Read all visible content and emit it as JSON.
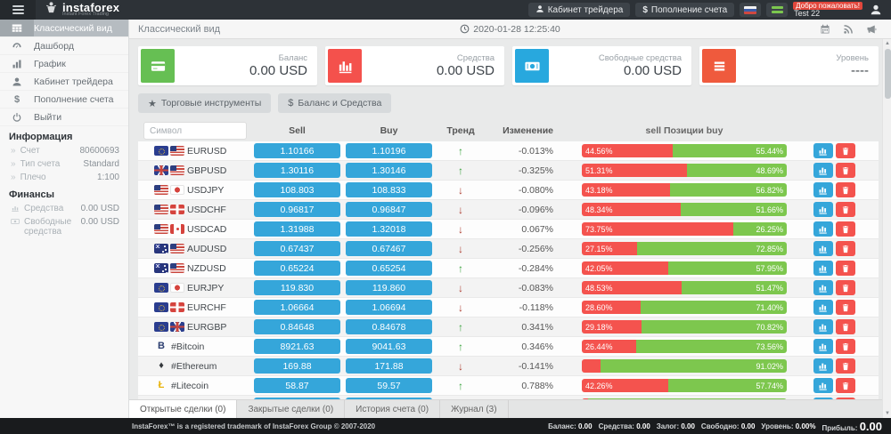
{
  "topbar": {
    "logo_text": "instaforex",
    "tagline": "Instant Forex Trading",
    "cabinet_label": "Кабинет трейдера",
    "deposit_label": "Пополнение счета",
    "deposit_icon": "$",
    "welcome_label": "Добро пожаловать!",
    "username": "Test 22",
    "icons": [
      "menu-icon",
      "instaforex-logo",
      "user-icon",
      "dollar-icon",
      "russian-flag-icon",
      "green-flag-icon",
      "avatar-icon"
    ]
  },
  "sidebar": {
    "items": [
      {
        "name": "classic-view",
        "label": "Классический вид",
        "icon": "table",
        "active": true
      },
      {
        "name": "dashboard",
        "label": "Дашборд",
        "icon": "dashboard",
        "active": false
      },
      {
        "name": "chart",
        "label": "График",
        "icon": "chart",
        "active": false
      },
      {
        "name": "trader-cabinet",
        "label": "Кабинет трейдера",
        "icon": "user",
        "active": false
      },
      {
        "name": "deposit",
        "label": "Пополнение счета",
        "icon": "dollar",
        "active": false
      },
      {
        "name": "logout",
        "label": "Выйти",
        "icon": "power",
        "active": false
      }
    ],
    "info_title": "Информация",
    "info_rows": [
      {
        "label": "Счет",
        "value": "80600693"
      },
      {
        "label": "Тип счета",
        "value": "Standard"
      },
      {
        "label": "Плечо",
        "value": "1:100"
      }
    ],
    "finance_title": "Финансы",
    "finance_rows": [
      {
        "label": "Средства",
        "value": "0.00 USD",
        "icon": "equity"
      },
      {
        "label": "Свободные средства",
        "value": "0.00 USD",
        "icon": "freefunds"
      }
    ]
  },
  "main_header": {
    "title": "Классический вид",
    "datetime": "2020-01-28 12:25:40",
    "icons": [
      "clock-icon",
      "calendar-icon",
      "rss-icon",
      "megaphone-icon"
    ]
  },
  "cards": [
    {
      "label": "Баланс",
      "value": "0.00 USD",
      "icon": "credit-card-icon",
      "color": "#66bf53"
    },
    {
      "label": "Средства",
      "value": "0.00 USD",
      "icon": "bar-chart-icon",
      "color": "#f4514c"
    },
    {
      "label": "Свободные средства",
      "value": "0.00 USD",
      "icon": "banknote-icon",
      "color": "#28a8de"
    },
    {
      "label": "Уровень",
      "value": "----",
      "icon": "menu-bars-icon",
      "color": "#ef5a3d"
    }
  ],
  "toolbar": {
    "instruments_label": "Торговые инструменты",
    "instruments_icon": "★",
    "balance_label": "Баланс и Средства",
    "balance_icon": "$"
  },
  "table": {
    "symbol_placeholder": "Символ",
    "headers": {
      "sell": "Sell",
      "buy": "Buy",
      "trend": "Тренд",
      "change": "Изменение",
      "positions": "sell Позиции buy"
    },
    "rows": [
      {
        "symbol": "EURUSD",
        "icons": [
          "eu",
          "us"
        ],
        "sell": "1.10166",
        "buy": "1.10196",
        "trend": "up",
        "change": "-0.013%",
        "sell_pct": 44.56,
        "sell_label": "44.56%",
        "buy_label": "55.44%"
      },
      {
        "symbol": "GBPUSD",
        "icons": [
          "gb",
          "us"
        ],
        "sell": "1.30116",
        "buy": "1.30146",
        "trend": "up",
        "change": "-0.325%",
        "sell_pct": 51.31,
        "sell_label": "51.31%",
        "buy_label": "48.69%"
      },
      {
        "symbol": "USDJPY",
        "icons": [
          "us",
          "jp"
        ],
        "sell": "108.803",
        "buy": "108.833",
        "trend": "down",
        "change": "-0.080%",
        "sell_pct": 43.18,
        "sell_label": "43.18%",
        "buy_label": "56.82%"
      },
      {
        "symbol": "USDCHF",
        "icons": [
          "us",
          "ch"
        ],
        "sell": "0.96817",
        "buy": "0.96847",
        "trend": "down",
        "change": "-0.096%",
        "sell_pct": 48.34,
        "sell_label": "48.34%",
        "buy_label": "51.66%"
      },
      {
        "symbol": "USDCAD",
        "icons": [
          "us",
          "ca"
        ],
        "sell": "1.31988",
        "buy": "1.32018",
        "trend": "down",
        "change": "0.067%",
        "sell_pct": 73.75,
        "sell_label": "73.75%",
        "buy_label": "26.25%"
      },
      {
        "symbol": "AUDUSD",
        "icons": [
          "au",
          "us"
        ],
        "sell": "0.67437",
        "buy": "0.67467",
        "trend": "down",
        "change": "-0.256%",
        "sell_pct": 27.15,
        "sell_label": "27.15%",
        "buy_label": "72.85%"
      },
      {
        "symbol": "NZDUSD",
        "icons": [
          "nz",
          "us"
        ],
        "sell": "0.65224",
        "buy": "0.65254",
        "trend": "up",
        "change": "-0.284%",
        "sell_pct": 42.05,
        "sell_label": "42.05%",
        "buy_label": "57.95%"
      },
      {
        "symbol": "EURJPY",
        "icons": [
          "eu",
          "jp"
        ],
        "sell": "119.830",
        "buy": "119.860",
        "trend": "down",
        "change": "-0.083%",
        "sell_pct": 48.53,
        "sell_label": "48.53%",
        "buy_label": "51.47%"
      },
      {
        "symbol": "EURCHF",
        "icons": [
          "eu",
          "ch"
        ],
        "sell": "1.06664",
        "buy": "1.06694",
        "trend": "down",
        "change": "-0.118%",
        "sell_pct": 28.6,
        "sell_label": "28.60%",
        "buy_label": "71.40%"
      },
      {
        "symbol": "EURGBP",
        "icons": [
          "eu",
          "gb"
        ],
        "sell": "0.84648",
        "buy": "0.84678",
        "trend": "up",
        "change": "0.341%",
        "sell_pct": 29.18,
        "sell_label": "29.18%",
        "buy_label": "70.82%"
      },
      {
        "symbol": "#Bitcoin",
        "icons": [
          "btc"
        ],
        "sell": "8921.63",
        "buy": "9041.63",
        "trend": "up",
        "change": "0.346%",
        "sell_pct": 26.44,
        "sell_label": "26.44%",
        "buy_label": "73.56%"
      },
      {
        "symbol": "#Ethereum",
        "icons": [
          "eth"
        ],
        "sell": "169.88",
        "buy": "171.88",
        "trend": "down",
        "change": "-0.141%",
        "sell_pct": 8.98,
        "sell_label": "",
        "buy_label": "91.02%"
      },
      {
        "symbol": "#Litecoin",
        "icons": [
          "ltc"
        ],
        "sell": "58.87",
        "buy": "59.57",
        "trend": "up",
        "change": "0.788%",
        "sell_pct": 42.26,
        "sell_label": "42.26%",
        "buy_label": "57.74%"
      },
      {
        "symbol": "",
        "icons": [],
        "sell": "",
        "buy": "",
        "trend": "",
        "change": "",
        "sell_pct": 3,
        "sell_label": "",
        "buy_label": ""
      }
    ]
  },
  "bottom_tabs": [
    {
      "label": "Открытые сделки (0)",
      "active": true
    },
    {
      "label": "Закрытые сделки (0)",
      "active": false
    },
    {
      "label": "История счета (0)",
      "active": false
    },
    {
      "label": "Журнал (3)",
      "active": false
    }
  ],
  "footer": {
    "trademark": "InstaForex™ is a registered trademark of InstaForex Group © 2007-2020",
    "stats": [
      {
        "label": "Баланс:",
        "value": "0.00",
        "big": false
      },
      {
        "label": "Средства:",
        "value": "0.00",
        "big": false
      },
      {
        "label": "Залог:",
        "value": "0.00",
        "big": false
      },
      {
        "label": "Свободно:",
        "value": "0.00",
        "big": false
      },
      {
        "label": "Уровень:",
        "value": "0.00%",
        "big": false
      },
      {
        "label": "Прибыль:",
        "value": "0.00",
        "big": true
      }
    ]
  }
}
